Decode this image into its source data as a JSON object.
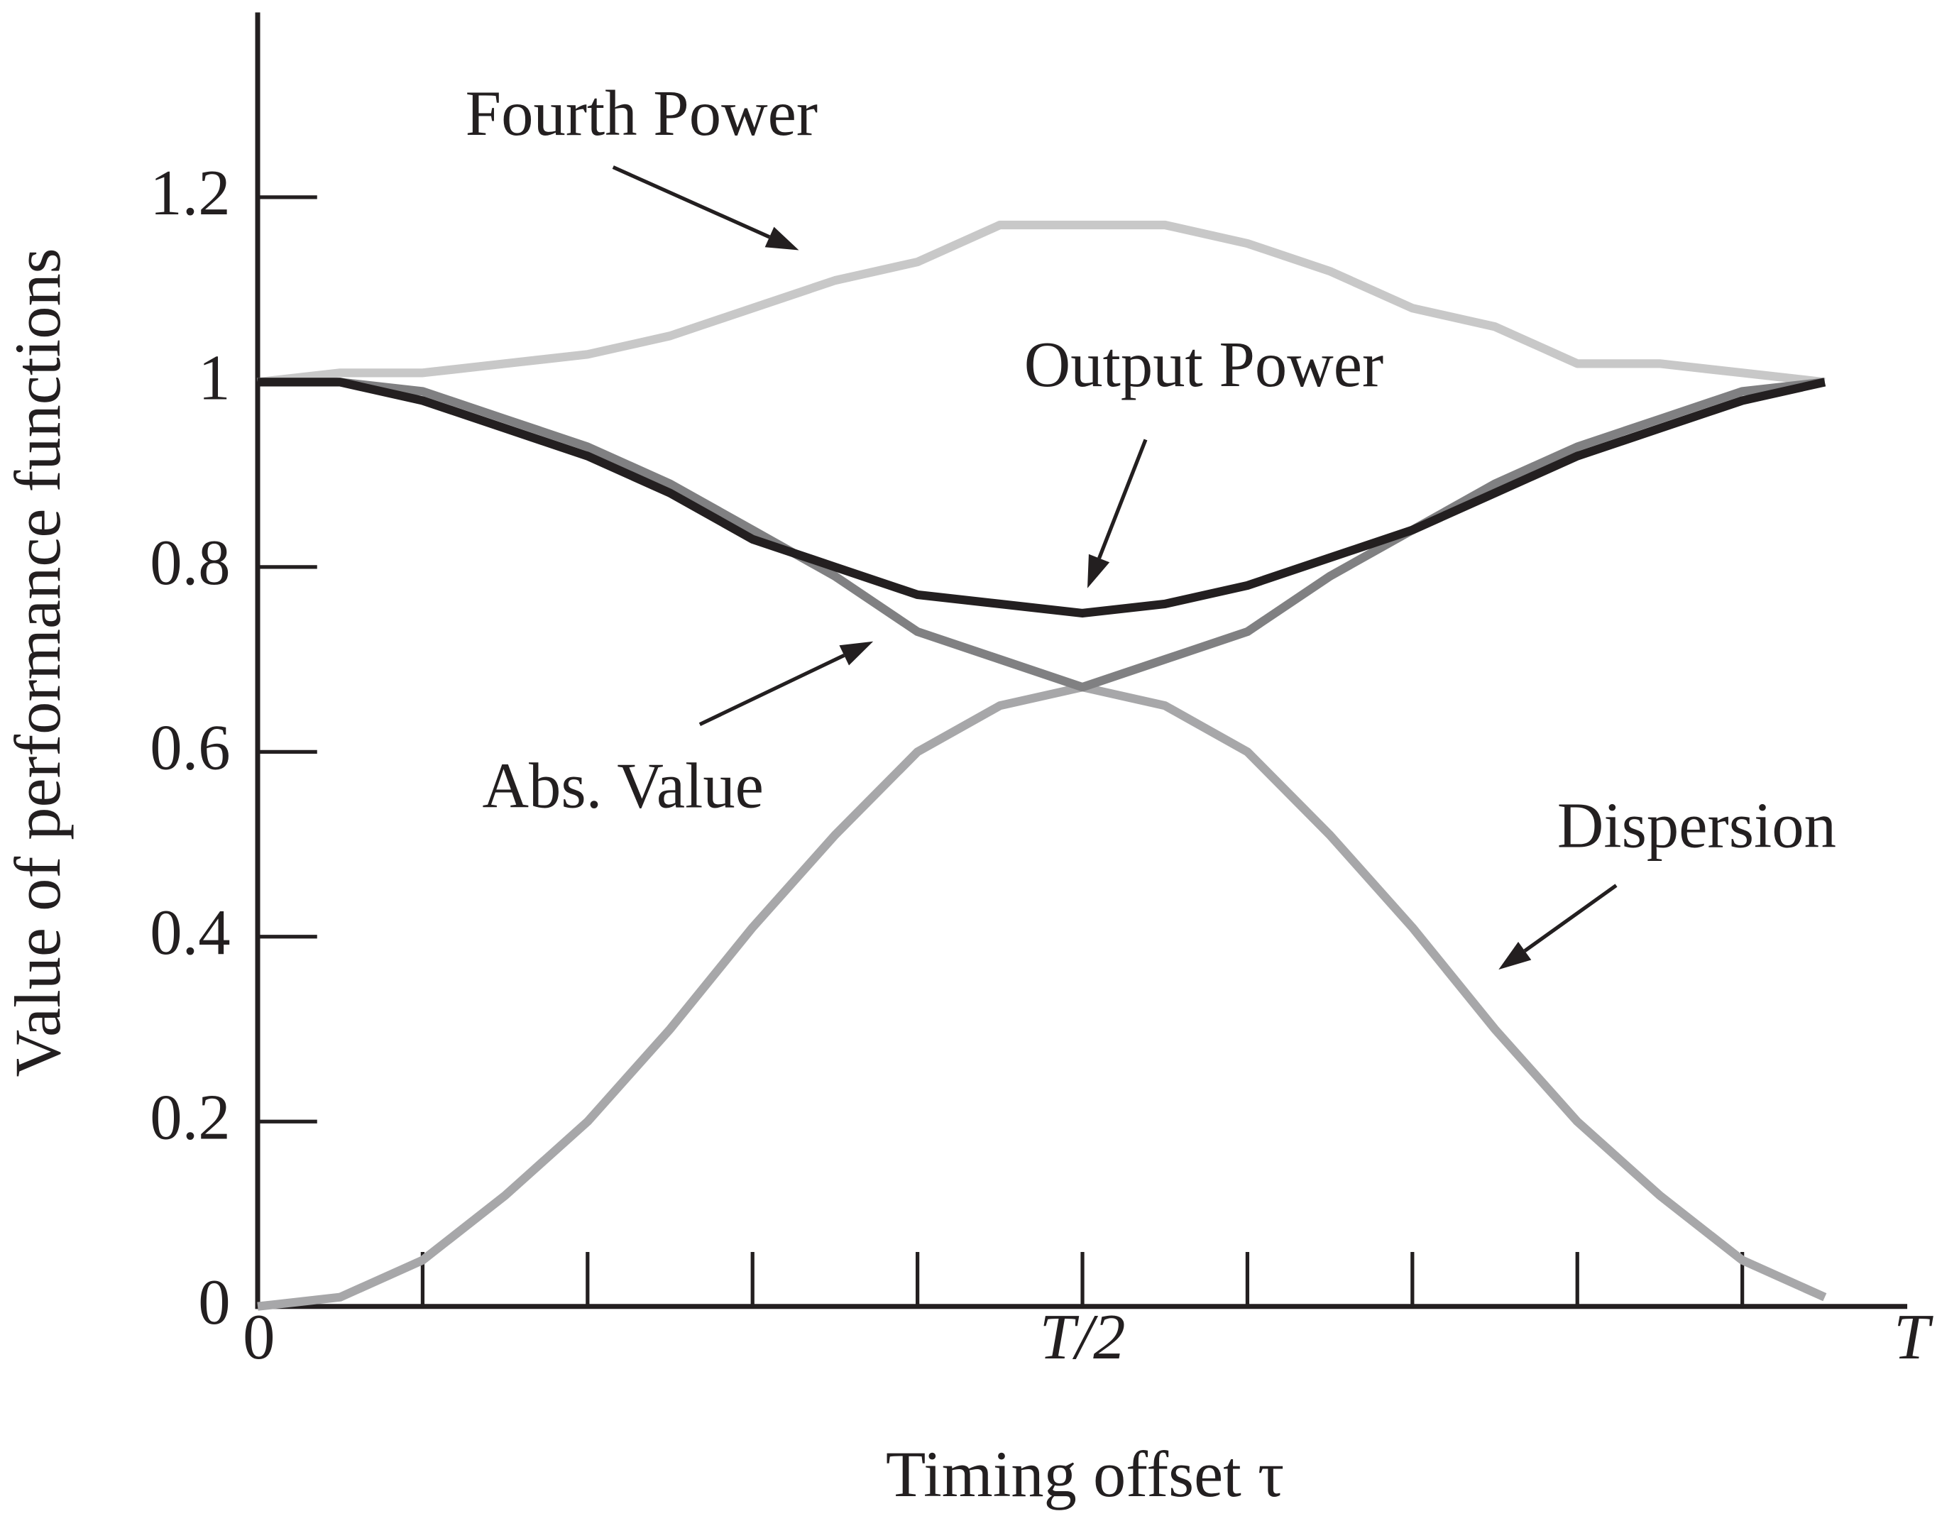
{
  "chart_data": {
    "type": "line",
    "xlabel": "Timing offset τ",
    "ylabel": "Value of performance functions",
    "x": [
      0,
      0.05,
      0.1,
      0.15,
      0.2,
      0.25,
      0.3,
      0.35,
      0.4,
      0.45,
      0.5,
      0.55,
      0.6,
      0.65,
      0.7,
      0.75,
      0.8,
      0.85,
      0.9,
      0.95
    ],
    "series": [
      {
        "name": "Fourth Power",
        "color": "#c8c8c8",
        "values": [
          1.0,
          1.01,
          1.01,
          1.02,
          1.03,
          1.05,
          1.08,
          1.11,
          1.13,
          1.17,
          1.17,
          1.17,
          1.15,
          1.12,
          1.08,
          1.06,
          1.02,
          1.02,
          1.01,
          1.0
        ]
      },
      {
        "name": "Output Power",
        "color": "#231f20",
        "values": [
          1.0,
          1.0,
          0.98,
          0.95,
          0.92,
          0.88,
          0.83,
          0.8,
          0.77,
          0.76,
          0.75,
          0.76,
          0.78,
          0.81,
          0.84,
          0.88,
          0.92,
          0.95,
          0.98,
          1.0
        ]
      },
      {
        "name": "Abs. Value",
        "color": "#808082",
        "values": [
          1.0,
          1.0,
          0.99,
          0.96,
          0.93,
          0.89,
          0.84,
          0.79,
          0.73,
          0.7,
          0.67,
          0.7,
          0.73,
          0.79,
          0.84,
          0.89,
          0.93,
          0.96,
          0.99,
          1.0
        ]
      },
      {
        "name": "Dispersion",
        "color": "#a7a7a9",
        "values": [
          0,
          0.01,
          0.05,
          0.12,
          0.2,
          0.3,
          0.41,
          0.51,
          0.6,
          0.65,
          0.67,
          0.65,
          0.6,
          0.51,
          0.41,
          0.3,
          0.2,
          0.12,
          0.05,
          0.01
        ]
      }
    ],
    "xlim": [
      0,
      1
    ],
    "xticks": [
      0,
      {
        "value": 0.5,
        "label": "T/2"
      },
      {
        "value": 1,
        "label": "T"
      }
    ],
    "xminorticks": [
      0.1,
      0.2,
      0.3,
      0.4,
      0.6,
      0.7,
      0.8,
      0.9
    ],
    "ylim": [
      0,
      1.4
    ],
    "yticks": [
      0,
      0.2,
      0.4,
      0.6,
      0.8,
      1,
      1.2
    ],
    "grid": false
  }
}
